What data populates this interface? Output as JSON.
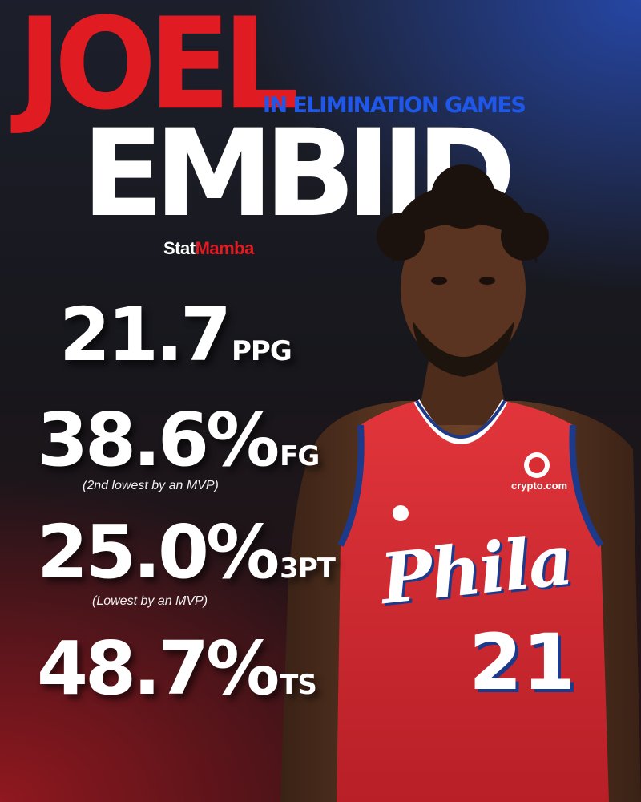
{
  "header": {
    "first_name": "JOEL",
    "last_name": "EMBIID",
    "subtitle": "IN ELIMINATION GAMES"
  },
  "brand": {
    "part1": "Stat",
    "part2": "Mamba"
  },
  "stats": [
    {
      "value": "21.7",
      "unit": "PPG",
      "note": ""
    },
    {
      "value": "38.6%",
      "unit": "FG",
      "note": "(2nd lowest by an MVP)"
    },
    {
      "value": "25.0%",
      "unit": "3PT",
      "note": "(Lowest by an MVP)"
    },
    {
      "value": "48.7%",
      "unit": "TS",
      "note": ""
    }
  ],
  "jersey": {
    "team_script": "Phila",
    "number": "21",
    "sponsor": "crypto.com"
  },
  "colors": {
    "accent_red": "#e11b22",
    "accent_blue": "#1f57e8",
    "jersey_red": "#d92c33",
    "jersey_navy": "#1d3a8a"
  }
}
